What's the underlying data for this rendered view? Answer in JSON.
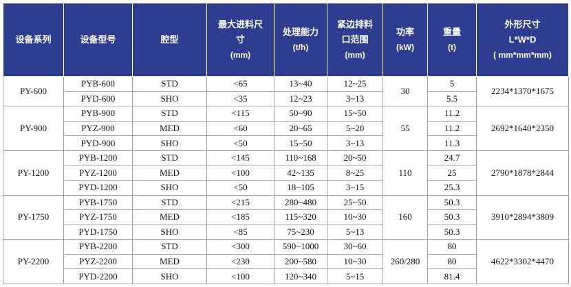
{
  "headers": {
    "series": "设备系列",
    "model": "设备型号",
    "cavity": "腔型",
    "feed": {
      "line1": "最大进料尺",
      "line2": "寸",
      "unit": "(mm)"
    },
    "capacity": {
      "line1": "处理能力",
      "unit": "(t/h)"
    },
    "discharge": {
      "line1": "紧边排料",
      "line2": "口范围",
      "unit": "(mm)"
    },
    "power": {
      "line1": "功率",
      "unit": "(kW)"
    },
    "weight": {
      "line1": "重量",
      "unit": "(t)"
    },
    "dimensions": {
      "line1": "外形尺寸",
      "line2": "L*W*D",
      "unit": "( mm*mm*mm)"
    }
  },
  "groups": [
    {
      "series": "PY-600",
      "power": "30",
      "dimensions": "2234*1370*1675",
      "rows": [
        {
          "model": "PYB-600",
          "cavity": "STD",
          "feed": "<65",
          "capacity": "13~40",
          "discharge": "12~25",
          "weight": "5"
        },
        {
          "model": "PYD-600",
          "cavity": "SHO",
          "feed": "<35",
          "capacity": "12~23",
          "discharge": "3~13",
          "weight": "5.5"
        }
      ]
    },
    {
      "series": "PY-900",
      "power": "55",
      "dimensions": "2692*1640*2350",
      "rows": [
        {
          "model": "PYB-900",
          "cavity": "STD",
          "feed": "<115",
          "capacity": "50~90",
          "discharge": "15~50",
          "weight": "11.2"
        },
        {
          "model": "PYZ-900",
          "cavity": "MED",
          "feed": "<60",
          "capacity": "20~65",
          "discharge": "5~20",
          "weight": "11.2"
        },
        {
          "model": "PYD-900",
          "cavity": "SHO",
          "feed": "<50",
          "capacity": "15~50",
          "discharge": "3~13",
          "weight": "11.3"
        }
      ]
    },
    {
      "series": "PY-1200",
      "power": "110",
      "dimensions": "2790*1878*2844",
      "rows": [
        {
          "model": "PYB-1200",
          "cavity": "STD",
          "feed": "<145",
          "capacity": "110~168",
          "discharge": "20~50",
          "weight": "24.7"
        },
        {
          "model": "PYZ-1200",
          "cavity": "MED",
          "feed": "<100",
          "capacity": "42~135",
          "discharge": "8~25",
          "weight": "25"
        },
        {
          "model": "PYD-1200",
          "cavity": "SHO",
          "feed": "<50",
          "capacity": "18~105",
          "discharge": "3~15",
          "weight": "25.3"
        }
      ]
    },
    {
      "series": "PY-1750",
      "power": "160",
      "dimensions": "3910*2894*3809",
      "rows": [
        {
          "model": "PYB-1750",
          "cavity": "STD",
          "feed": "<215",
          "capacity": "280~480",
          "discharge": "25~50",
          "weight": "50.3"
        },
        {
          "model": "PYZ-1750",
          "cavity": "MED",
          "feed": "<185",
          "capacity": "115~320",
          "discharge": "10~30",
          "weight": "50.3"
        },
        {
          "model": "PYD-1750",
          "cavity": "SHO",
          "feed": "<85",
          "capacity": "75~230",
          "discharge": "5~13",
          "weight": "50.3"
        }
      ]
    },
    {
      "series": "PY-2200",
      "power": "260/280",
      "dimensions": "4622*3302*4470",
      "rows": [
        {
          "model": "PYB-2200",
          "cavity": "STD",
          "feed": "<300",
          "capacity": "590~1000",
          "discharge": "30~60",
          "weight": "80"
        },
        {
          "model": "PYZ-2200",
          "cavity": "MED",
          "feed": "<230",
          "capacity": "200~580",
          "discharge": "10~30",
          "weight": "80"
        },
        {
          "model": "PYD-2200",
          "cavity": "SHO",
          "feed": "<100",
          "capacity": "120~340",
          "discharge": "5~15",
          "weight": "81.4"
        }
      ]
    }
  ]
}
